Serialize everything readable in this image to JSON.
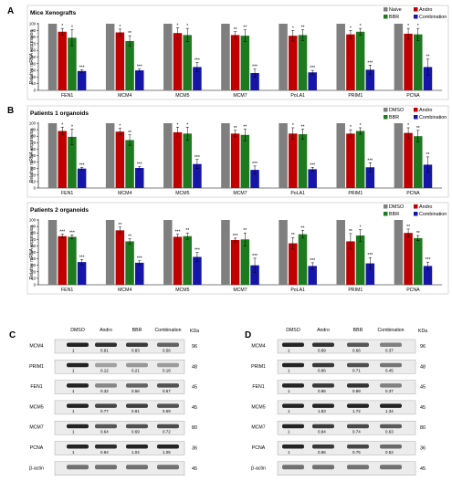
{
  "colors": {
    "naive": "#7f7f7f",
    "dmso": "#7f7f7f",
    "andro": "#c00000",
    "bbr": "#1e7a1e",
    "combination": "#1515a8"
  },
  "chart_data": [
    {
      "panel": "A",
      "type": "bar",
      "title": "Mice Xenografts",
      "ylabel": "Relative mRNA expression",
      "ylim": [
        0,
        100
      ],
      "yticks": [
        0,
        10,
        20,
        30,
        40,
        50,
        60,
        70,
        80,
        90,
        100
      ],
      "categories": [
        "FEN1",
        "MCM4",
        "MCM5",
        "MCM7",
        "PoLA1",
        "PRIM1",
        "PCNA"
      ],
      "legend_position": "top-right",
      "series": [
        {
          "name": "Naive",
          "values": [
            100,
            100,
            100,
            100,
            100,
            100,
            100
          ],
          "errors": [
            0,
            0,
            0,
            0,
            0,
            0,
            0
          ],
          "sig": [
            "",
            "",
            "",
            "",
            "",
            "",
            ""
          ]
        },
        {
          "name": "Andro",
          "values": [
            88,
            87,
            86,
            83,
            82,
            84,
            85
          ],
          "errors": [
            5,
            5,
            8,
            5,
            8,
            6,
            8
          ],
          "sig": [
            "*",
            "*",
            "*",
            "**",
            "*",
            "*",
            "*"
          ]
        },
        {
          "name": "BBR",
          "values": [
            79,
            74,
            83,
            82,
            83,
            88,
            84
          ],
          "errors": [
            12,
            8,
            10,
            9,
            8,
            5,
            9
          ],
          "sig": [
            "*",
            "**",
            "*",
            "**",
            "**",
            "*",
            "*"
          ]
        },
        {
          "name": "Combination",
          "values": [
            29,
            30,
            35,
            26,
            27,
            31,
            35
          ],
          "errors": [
            2,
            2,
            7,
            6,
            3,
            7,
            12
          ],
          "sig": [
            "***",
            "***",
            "***",
            "***",
            "***",
            "***",
            "**"
          ]
        }
      ]
    },
    {
      "panel": "B",
      "type": "bar",
      "title": "Patients 1 organoids",
      "ylabel": "Relative mRNA expression",
      "ylim": [
        0,
        100
      ],
      "yticks": [
        0,
        10,
        20,
        30,
        40,
        50,
        60,
        70,
        80,
        90,
        100
      ],
      "categories": [
        "FEN1",
        "MCM4",
        "MCM5",
        "MCM7",
        "PoLA1",
        "PRIM1",
        "PCNA"
      ],
      "legend_position": "top-right",
      "series": [
        {
          "name": "DMSO",
          "values": [
            100,
            100,
            100,
            100,
            100,
            100,
            100
          ],
          "errors": [
            0,
            0,
            0,
            0,
            0,
            0,
            0
          ],
          "sig": [
            "",
            "",
            "",
            "",
            "",
            "",
            ""
          ]
        },
        {
          "name": "Andro",
          "values": [
            88,
            87,
            86,
            84,
            84,
            84,
            85
          ],
          "errors": [
            6,
            5,
            8,
            5,
            9,
            6,
            8
          ],
          "sig": [
            "*",
            "*",
            "*",
            "**",
            "*",
            "*",
            "*"
          ]
        },
        {
          "name": "BBR",
          "values": [
            79,
            74,
            84,
            82,
            83,
            88,
            80
          ],
          "errors": [
            12,
            8,
            10,
            9,
            8,
            5,
            9
          ],
          "sig": [
            "*",
            "**",
            "*",
            "**",
            "**",
            "*",
            "**"
          ]
        },
        {
          "name": "Combination",
          "values": [
            30,
            31,
            37,
            28,
            29,
            32,
            36
          ],
          "errors": [
            2,
            2,
            7,
            6,
            3,
            7,
            12
          ],
          "sig": [
            "***",
            "***",
            "***",
            "***",
            "***",
            "***",
            "**"
          ]
        }
      ]
    },
    {
      "panel": "B2",
      "type": "bar",
      "title": "Patients 2 organoids",
      "ylabel": "Relative mRNA expression",
      "ylim": [
        0,
        100
      ],
      "yticks": [
        0,
        10,
        20,
        30,
        40,
        50,
        60,
        70,
        80,
        90,
        100
      ],
      "categories": [
        "FEN1",
        "MCM4",
        "MCM5",
        "MCM7",
        "PoLA1",
        "PRIM1",
        "PCNA"
      ],
      "legend_position": "top-right",
      "series": [
        {
          "name": "DMSO",
          "values": [
            100,
            100,
            100,
            100,
            100,
            100,
            100
          ],
          "errors": [
            0,
            0,
            0,
            0,
            0,
            0,
            0
          ],
          "sig": [
            "",
            "",
            "",
            "",
            "",
            "",
            ""
          ]
        },
        {
          "name": "Andro",
          "values": [
            75,
            84,
            74,
            69,
            64,
            67,
            80
          ],
          "errors": [
            3,
            5,
            4,
            3,
            9,
            12,
            6
          ],
          "sig": [
            "***",
            "**",
            "***",
            "***",
            "**",
            "**",
            "**"
          ]
        },
        {
          "name": "BBR",
          "values": [
            74,
            67,
            75,
            70,
            78,
            76,
            72
          ],
          "errors": [
            3,
            4,
            5,
            10,
            6,
            9,
            4
          ],
          "sig": [
            "***",
            "**",
            "**",
            "**",
            "**",
            "*",
            "**"
          ]
        },
        {
          "name": "Combination",
          "values": [
            35,
            34,
            43,
            30,
            29,
            33,
            29
          ],
          "errors": [
            4,
            3,
            7,
            11,
            5,
            9,
            6
          ],
          "sig": [
            "***",
            "***",
            "***",
            "***",
            "***",
            "***",
            "***"
          ]
        }
      ]
    }
  ],
  "blots": [
    {
      "panel": "C",
      "columns": [
        "DMSO",
        "Andro",
        "BBR",
        "Combination"
      ],
      "unit": "KDa",
      "rows": [
        {
          "label": "MCM4",
          "values": [
            "1",
            "0.91",
            "0.83",
            "0.56"
          ],
          "kda": "96"
        },
        {
          "label": "PRIM1",
          "values": [
            "1",
            "0.12",
            "0.21",
            "0.18"
          ],
          "kda": "48"
        },
        {
          "label": "FEN1",
          "values": [
            "1",
            "0.32",
            "0.56",
            "0.67"
          ],
          "kda": "45"
        },
        {
          "label": "MCM5",
          "values": [
            "1",
            "0.77",
            "0.81",
            "0.69"
          ],
          "kda": "45"
        },
        {
          "label": "MCM7",
          "values": [
            "1",
            "0.64",
            "0.69",
            "0.72"
          ],
          "kda": "80"
        },
        {
          "label": "PCNA",
          "values": [
            "1",
            "0.94",
            "1.04",
            "1.05"
          ],
          "kda": "36"
        },
        {
          "label": "β-actin",
          "values": [
            "",
            "",
            "",
            ""
          ],
          "kda": "45"
        }
      ]
    },
    {
      "panel": "D",
      "columns": [
        "DMSO",
        "Andro",
        "BBR",
        "Combination"
      ],
      "unit": "KDa",
      "rows": [
        {
          "label": "MCM4",
          "values": [
            "1",
            "0.89",
            "0.66",
            "0.37"
          ],
          "kda": "96"
        },
        {
          "label": "PRIM1",
          "values": [
            "1",
            "0.86",
            "0.71",
            "0.45"
          ],
          "kda": "48"
        },
        {
          "label": "FEN1",
          "values": [
            "1",
            "0.86",
            "0.89",
            "0.37"
          ],
          "kda": "45"
        },
        {
          "label": "MCM5",
          "values": [
            "1",
            "1.83",
            "1.72",
            "1.34"
          ],
          "kda": "45"
        },
        {
          "label": "MCM7",
          "values": [
            "1",
            "0.84",
            "0.74",
            "0.63"
          ],
          "kda": "80"
        },
        {
          "label": "PCNA",
          "values": [
            "1",
            "0.86",
            "0.75",
            "0.52"
          ],
          "kda": "36"
        },
        {
          "label": "β-actin",
          "values": [
            "",
            "",
            "",
            ""
          ],
          "kda": "45"
        }
      ]
    }
  ]
}
